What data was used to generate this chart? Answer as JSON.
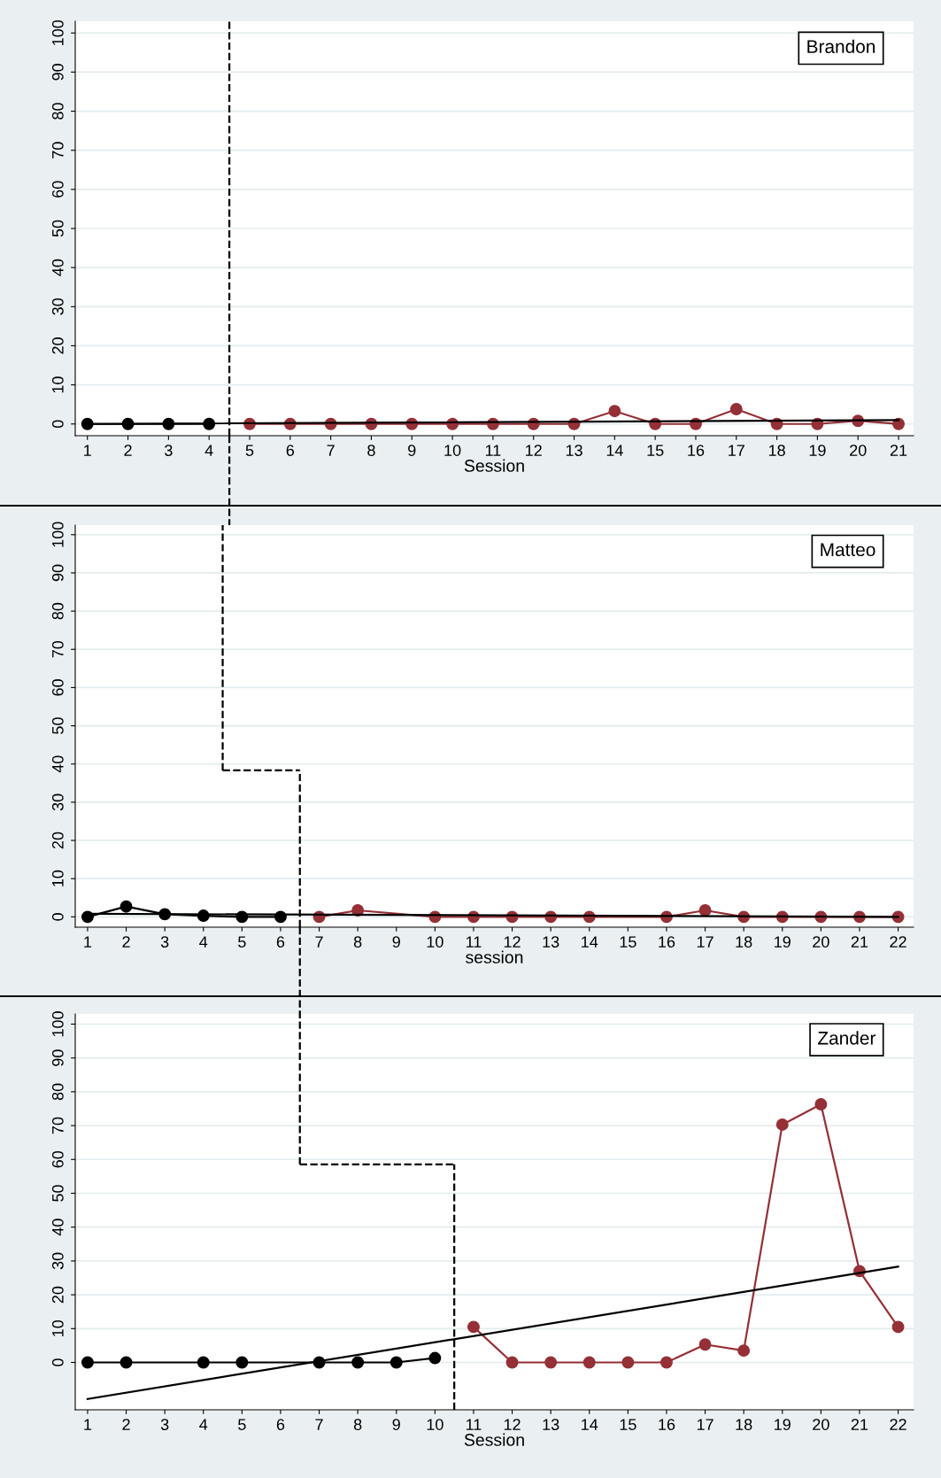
{
  "chart_data": [
    {
      "type": "line",
      "xlabel": "Session",
      "annotations": [
        "Brandon"
      ],
      "xlim": [
        0.7,
        21.37
      ],
      "ylim": [
        -3,
        103
      ],
      "xticks": [
        1,
        2,
        3,
        4,
        5,
        6,
        7,
        8,
        9,
        10,
        11,
        12,
        13,
        14,
        15,
        16,
        17,
        18,
        19,
        20,
        21
      ],
      "yticks": [
        0,
        10,
        20,
        30,
        40,
        50,
        60,
        70,
        80,
        90,
        100
      ],
      "grid": "y",
      "legend": false,
      "ref_lines": [
        {
          "axis": "x",
          "value": 4.5,
          "color": "#000000",
          "line_style": "dashed"
        }
      ],
      "series": [
        {
          "color": "#000000",
          "marker": "circle",
          "x": [
            1,
            2,
            3,
            4
          ],
          "values": [
            0,
            0,
            0,
            0
          ]
        },
        {
          "color": "#943036",
          "marker": "circle",
          "x": [
            5,
            6,
            7,
            8,
            9,
            10,
            11,
            12,
            13,
            14,
            15,
            16,
            17,
            18,
            19,
            20,
            21
          ],
          "values": [
            0,
            0,
            0,
            0,
            0,
            0,
            0,
            0,
            0,
            3.3,
            0,
            0,
            3.8,
            0,
            0,
            0.8,
            0
          ]
        },
        {
          "color": "#000000",
          "marker": "none",
          "x": [
            1,
            21
          ],
          "values": [
            0,
            1
          ]
        }
      ]
    },
    {
      "type": "line",
      "xlabel": "session",
      "annotations": [
        "Matteo"
      ],
      "xlim": [
        0.68,
        22.4
      ],
      "ylim": [
        -2.7,
        102.5
      ],
      "xticks": [
        1,
        2,
        3,
        4,
        5,
        6,
        7,
        8,
        9,
        10,
        11,
        12,
        13,
        14,
        15,
        16,
        17,
        18,
        19,
        20,
        21,
        22
      ],
      "yticks": [
        0,
        10,
        20,
        30,
        40,
        50,
        60,
        70,
        80,
        90,
        100
      ],
      "grid": "y",
      "legend": false,
      "ref_lines": [
        {
          "axis": "x",
          "value": 4.5,
          "color": "#000000",
          "line_style": "dashed"
        },
        {
          "axis": "x",
          "value": 6.5,
          "color": "#000000",
          "line_style": "dashed"
        }
      ],
      "series": [
        {
          "color": "#000000",
          "marker": "circle",
          "x": [
            1,
            2,
            3,
            4,
            5,
            6
          ],
          "values": [
            0,
            2.7,
            0.7,
            0.3,
            0,
            0
          ]
        },
        {
          "color": "#943036",
          "marker": "circle",
          "x": [
            7,
            8,
            10,
            11,
            12,
            13,
            14,
            16,
            17,
            18,
            19,
            20,
            21,
            22
          ],
          "values": [
            0,
            1.7,
            0,
            0,
            0,
            0,
            0,
            0,
            1.7,
            0,
            0,
            0,
            0,
            0
          ]
        },
        {
          "color": "#000000",
          "marker": "none",
          "x": [
            1,
            22
          ],
          "values": [
            0.8,
            0
          ]
        }
      ]
    },
    {
      "type": "line",
      "xlabel": "Session",
      "annotations": [
        "Zander"
      ],
      "xlim": [
        0.68,
        22.4
      ],
      "ylim": [
        -14,
        103
      ],
      "xticks": [
        1,
        2,
        3,
        4,
        5,
        6,
        7,
        8,
        9,
        10,
        11,
        12,
        13,
        14,
        15,
        16,
        17,
        18,
        19,
        20,
        21,
        22
      ],
      "yticks": [
        0,
        10,
        20,
        30,
        40,
        50,
        60,
        70,
        80,
        90,
        100
      ],
      "grid": "y",
      "legend": false,
      "ref_lines": [
        {
          "axis": "x",
          "value": 6.5,
          "color": "#000000",
          "line_style": "dashed"
        },
        {
          "axis": "x",
          "value": 10.5,
          "color": "#000000",
          "line_style": "dashed"
        }
      ],
      "series": [
        {
          "color": "#000000",
          "marker": "circle",
          "x": [
            1,
            2,
            4,
            5,
            7,
            8,
            9,
            10
          ],
          "values": [
            0,
            0,
            0,
            0,
            0,
            0,
            0,
            1.3
          ]
        },
        {
          "color": "#943036",
          "marker": "circle",
          "x": [
            11,
            12,
            13,
            14,
            15,
            16,
            17,
            18,
            19,
            20,
            21,
            22
          ],
          "values": [
            10.5,
            0,
            0,
            0,
            0,
            0,
            5.3,
            3.5,
            70.3,
            76.3,
            27,
            10.5
          ]
        },
        {
          "color": "#000000",
          "marker": "none",
          "x": [
            1,
            22
          ],
          "values": [
            -10.8,
            28.3
          ]
        }
      ]
    }
  ]
}
